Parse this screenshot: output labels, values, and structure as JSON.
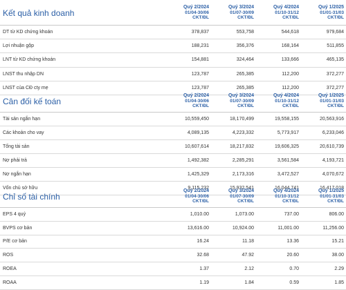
{
  "columns": [
    {
      "quarter": "Quý 2/2024",
      "period": "01/04-30/06",
      "unit": "CKT/ĐL"
    },
    {
      "quarter": "Quý 3/2024",
      "period": "01/07-30/09",
      "unit": "CKT/ĐL"
    },
    {
      "quarter": "Quý 4/2024",
      "period": "01/10-31/12",
      "unit": "CKT/ĐL"
    },
    {
      "quarter": "Quý 1/2025",
      "period": "01/01-31/03",
      "unit": "CKT/ĐL"
    }
  ],
  "sections": [
    {
      "title": "Kết quả kinh doanh",
      "rows": [
        {
          "label": "DT từ KD chứng khoán",
          "values": [
            "378,837",
            "553,758",
            "544,618",
            "979,684"
          ]
        },
        {
          "label": "Lợi nhuận gộp",
          "values": [
            "188,231",
            "356,376",
            "168,164",
            "511,855"
          ]
        },
        {
          "label": "LNT từ KD chứng khoán",
          "values": [
            "154,881",
            "324,464",
            "133,666",
            "465,135"
          ]
        },
        {
          "label": "LNST thu nhập DN",
          "values": [
            "123,787",
            "265,385",
            "112,200",
            "372,277"
          ]
        },
        {
          "label": "LNST của CĐ cty mẹ",
          "values": [
            "123,787",
            "265,385",
            "112,200",
            "372,277"
          ]
        }
      ]
    },
    {
      "title": "Cân đối kế toán",
      "rows": [
        {
          "label": "Tài sản ngắn hạn",
          "values": [
            "10,559,450",
            "18,170,499",
            "19,558,155",
            "20,563,916"
          ]
        },
        {
          "label": "Các khoản cho vay",
          "values": [
            "4,089,135",
            "4,223,332",
            "5,773,917",
            "6,233,046"
          ]
        },
        {
          "label": "Tổng tài sản",
          "values": [
            "10,607,614",
            "18,217,832",
            "19,606,325",
            "20,610,739"
          ]
        },
        {
          "label": "Nợ phải trả",
          "values": [
            "1,492,382",
            "2,285,291",
            "3,561,584",
            "4,193,721"
          ]
        },
        {
          "label": "Nợ ngắn hạn",
          "values": [
            "1,425,329",
            "2,173,316",
            "3,472,527",
            "4,070,672"
          ]
        },
        {
          "label": "Vốn chủ sở hữu",
          "values": [
            "9,115,232",
            "15,932,541",
            "16,044,741",
            "16,417,018"
          ]
        }
      ]
    },
    {
      "title": "Chỉ số tài chính",
      "rows": [
        {
          "label": "EPS 4 quý",
          "values": [
            "1,010.00",
            "1,073.00",
            "737.00",
            "806.00"
          ]
        },
        {
          "label": "BVPS cơ bản",
          "values": [
            "13,616.00",
            "10,924.00",
            "11,001.00",
            "11,256.00"
          ]
        },
        {
          "label": "P/E cơ bản",
          "values": [
            "16.24",
            "11.18",
            "13.36",
            "15.21"
          ]
        },
        {
          "label": "ROS",
          "values": [
            "32.68",
            "47.92",
            "20.60",
            "38.00"
          ]
        },
        {
          "label": "ROEA",
          "values": [
            "1.37",
            "2.12",
            "0.70",
            "2.29"
          ]
        },
        {
          "label": "ROAA",
          "values": [
            "1.19",
            "1.84",
            "0.59",
            "1.85"
          ]
        }
      ]
    }
  ]
}
